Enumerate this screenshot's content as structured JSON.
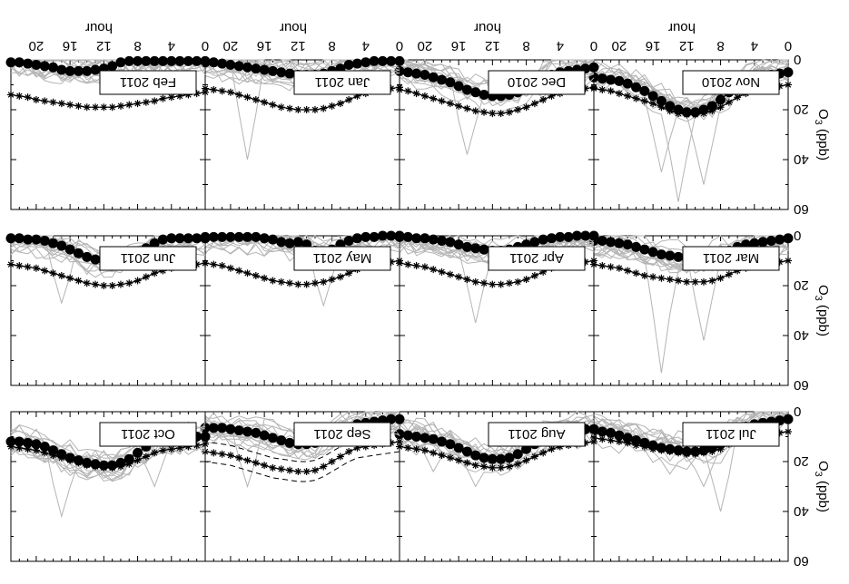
{
  "chart_data": {
    "type": "line",
    "orientation": "figure rendered rotated 180 degrees",
    "xlabel": "hour",
    "ylabel": "O",
    "ylabel_sub": "3",
    "ylabel_unit": " (ppb)",
    "xticks": [
      "0",
      "4",
      "8",
      "12",
      "16",
      "20"
    ],
    "yticks": [
      "0",
      "20",
      "40",
      "60"
    ],
    "xlim": [
      0,
      23
    ],
    "ylim": [
      0,
      60
    ],
    "grid": false,
    "panels": [
      {
        "label": "Jul 2011",
        "mean": [
          3,
          3.5,
          4,
          4.5,
          5,
          6,
          8,
          11,
          13,
          14.5,
          15.5,
          16,
          16,
          15.5,
          15,
          14.5,
          13.5,
          12.5,
          11.5,
          10.5,
          9.5,
          8.5,
          8,
          7.5
        ],
        "modeled": [
          8,
          8.5,
          9,
          9.5,
          10,
          10.5,
          11.5,
          13,
          15,
          16,
          16.5,
          17,
          17,
          16.5,
          16,
          15.5,
          15,
          14,
          13.5,
          12.5,
          12,
          11.5,
          11,
          10.5
        ],
        "spikes": [
          {
            "hour": 8,
            "value": 40
          },
          {
            "hour": 10,
            "value": 30
          },
          {
            "hour": 14,
            "value": 25
          }
        ]
      },
      {
        "label": "Aug 2011",
        "mean": [
          7,
          7,
          7.5,
          7.5,
          8,
          9,
          11,
          13,
          15,
          17,
          18.5,
          19,
          19,
          18.5,
          17.5,
          16,
          14.5,
          13,
          12,
          11,
          10.5,
          10,
          9.5,
          9
        ],
        "modeled": [
          12,
          12.5,
          13,
          13.5,
          14,
          15,
          16.5,
          18,
          19.5,
          21,
          22,
          22.5,
          22.5,
          22,
          21.5,
          20.5,
          19.5,
          18.5,
          17.5,
          16.5,
          15.5,
          15,
          14.5,
          14
        ],
        "spikes": [
          {
            "hour": 14,
            "value": 30
          },
          {
            "hour": 19,
            "value": 24
          }
        ]
      },
      {
        "label": "Sep 2011",
        "mean": [
          3,
          3,
          3.5,
          4,
          4.5,
          5,
          6.5,
          8,
          10,
          11.5,
          12.5,
          13,
          13,
          12.5,
          11.5,
          10.5,
          9.5,
          8.5,
          8,
          7.5,
          7,
          6.5,
          6.5,
          6.5
        ],
        "modeled": [
          12,
          12.5,
          13,
          13.5,
          14,
          14.5,
          16,
          18,
          20,
          22,
          23.5,
          24,
          24,
          23.5,
          23,
          22.5,
          21.5,
          20.5,
          19.5,
          18.5,
          17.5,
          17,
          16.5,
          16
        ],
        "band": 4,
        "spikes": [
          {
            "hour": 18,
            "value": 30
          }
        ]
      },
      {
        "label": "Oct 2011",
        "mean": [
          10,
          10,
          10,
          10.5,
          10.5,
          11,
          12,
          14,
          16.5,
          19,
          20.5,
          21.5,
          21.5,
          21,
          20.5,
          19.5,
          18.5,
          17,
          15.5,
          14,
          13,
          12.5,
          12,
          12
        ],
        "modeled": [
          13,
          13.5,
          14,
          14.5,
          15,
          15.5,
          16.5,
          18,
          19.5,
          21,
          22,
          22.5,
          22.5,
          22,
          21.5,
          20.5,
          19.5,
          18.5,
          17.5,
          16.5,
          15.5,
          15,
          14.5,
          14
        ],
        "spikes": [
          {
            "hour": 6,
            "value": 30
          },
          {
            "hour": 17,
            "value": 42
          }
        ]
      },
      {
        "label": "Mar 2011",
        "mean": [
          1,
          1.5,
          2,
          2.5,
          3,
          3.5,
          4.5,
          6,
          7.5,
          8.5,
          9,
          9,
          9,
          8.5,
          8,
          7.5,
          6.5,
          5.5,
          4.5,
          3.5,
          3,
          2.5,
          2,
          2
        ],
        "modeled": [
          10,
          10.5,
          11,
          11.5,
          12,
          13,
          14,
          15.5,
          17,
          18,
          18.5,
          18.5,
          18.5,
          18,
          17.5,
          17,
          16.5,
          16,
          15,
          14,
          13,
          12.5,
          12,
          11.5
        ],
        "spikes": [
          {
            "hour": 10,
            "value": 42
          },
          {
            "hour": 15,
            "value": 55
          }
        ]
      },
      {
        "label": "Apr 2011",
        "mean": [
          0,
          0,
          0,
          0.5,
          0.5,
          1,
          1.5,
          2.5,
          3.5,
          4.5,
          5.5,
          6,
          6,
          5.5,
          5,
          4.5,
          3.5,
          2.5,
          2,
          1.5,
          1,
          1,
          0.5,
          0.5
        ],
        "modeled": [
          10,
          10.5,
          11,
          11.5,
          12,
          13,
          14.5,
          16,
          17.5,
          18.5,
          19,
          19.5,
          19.5,
          19,
          18.5,
          17.5,
          16.5,
          15.5,
          14.5,
          13.5,
          12.5,
          12,
          11.5,
          11
        ],
        "spikes": [
          {
            "hour": 14,
            "value": 35
          }
        ]
      },
      {
        "label": "May 2011",
        "mean": [
          0,
          0,
          0,
          0.5,
          0.5,
          1,
          2,
          3.5,
          5.5,
          7,
          6,
          3.5,
          2.5,
          3,
          2.5,
          1.5,
          1,
          0.5,
          0.5,
          0.5,
          0.5,
          0.5,
          0.5,
          0.5
        ],
        "modeled": [
          10,
          10.5,
          11,
          11.5,
          12.5,
          13.5,
          15,
          16.5,
          17.5,
          18.5,
          19,
          19.5,
          19.5,
          19,
          18.5,
          18,
          17,
          16,
          15,
          14,
          13,
          12,
          11.5,
          11
        ],
        "spikes": [
          {
            "hour": 9,
            "value": 28
          }
        ]
      },
      {
        "label": "Jun 2011",
        "mean": [
          1,
          1,
          1,
          1,
          1,
          1.5,
          3,
          5,
          7,
          8.5,
          9.5,
          10,
          10,
          9.5,
          8.5,
          7,
          5.5,
          4,
          3,
          2,
          1.5,
          1.5,
          1,
          1
        ],
        "modeled": [
          11,
          11.5,
          12,
          12.5,
          13,
          14,
          15,
          16.5,
          18,
          19,
          19.5,
          20,
          20,
          19.5,
          19,
          18,
          17,
          16,
          15,
          14,
          13,
          12.5,
          12,
          11.5
        ],
        "spikes": [
          {
            "hour": 17,
            "value": 27
          }
        ]
      },
      {
        "label": "Nov 2010",
        "mean": [
          5,
          5.5,
          6,
          6.5,
          7,
          8,
          10,
          13,
          16,
          18.5,
          20,
          21,
          21,
          20,
          18.5,
          16.5,
          14.5,
          12.5,
          11,
          9.5,
          8.5,
          8,
          7.5,
          7
        ],
        "modeled": [
          10,
          10.5,
          11,
          11.5,
          12.5,
          13.5,
          15,
          17,
          19,
          20.5,
          21.5,
          22,
          22,
          21.5,
          20.5,
          19,
          17.5,
          16.5,
          15.5,
          14.5,
          13.5,
          12.5,
          12,
          11.5
        ],
        "spikes": [
          {
            "hour": 10,
            "value": 50
          },
          {
            "hour": 13,
            "value": 57
          },
          {
            "hour": 15,
            "value": 45
          }
        ]
      },
      {
        "label": "Dec 2010",
        "mean": [
          3,
          3.5,
          4,
          4.5,
          5,
          6,
          7.5,
          9.5,
          11.5,
          13,
          14,
          14.5,
          14.5,
          14,
          13,
          12,
          10.5,
          9,
          8,
          7,
          6,
          5.5,
          5,
          4.5
        ],
        "modeled": [
          11,
          11.5,
          12,
          12.5,
          13.5,
          14.5,
          16,
          17.5,
          19,
          20,
          21,
          21.5,
          21.5,
          21,
          20.5,
          19.5,
          18.5,
          17.5,
          16.5,
          15.5,
          14.5,
          13.5,
          12.5,
          12
        ],
        "spikes": [
          {
            "hour": 15,
            "value": 38
          }
        ]
      },
      {
        "label": "Jan 2011",
        "mean": [
          0.5,
          0.5,
          0.5,
          0.5,
          1,
          1.5,
          2,
          3.5,
          4.5,
          5.5,
          6,
          6,
          6,
          5.5,
          5,
          4.5,
          4,
          3.5,
          3,
          2.5,
          2,
          1.5,
          1,
          1
        ],
        "modeled": [
          11,
          11.5,
          12,
          12.5,
          13.5,
          14.5,
          16,
          17.5,
          18.5,
          19.5,
          20,
          20,
          20,
          19.5,
          19,
          18,
          17,
          16,
          15,
          14,
          13,
          12.5,
          12,
          11.5
        ],
        "spikes": [
          {
            "hour": 18,
            "value": 40
          }
        ]
      },
      {
        "label": "Feb 2011",
        "mean": [
          0.5,
          0.5,
          0.5,
          0.5,
          0.5,
          0.5,
          0.5,
          0.5,
          0.5,
          0.5,
          1,
          2.5,
          3.5,
          4,
          4.5,
          4.5,
          4.5,
          4,
          3,
          2.5,
          2,
          1.5,
          1,
          1
        ],
        "modeled": [
          13,
          13.5,
          14,
          14.5,
          15,
          15.5,
          16.5,
          17,
          17.5,
          18,
          18.5,
          19,
          19,
          19,
          19,
          18.5,
          18,
          17.5,
          17,
          16.5,
          16,
          15,
          14.5,
          14
        ],
        "spikes": []
      }
    ]
  }
}
